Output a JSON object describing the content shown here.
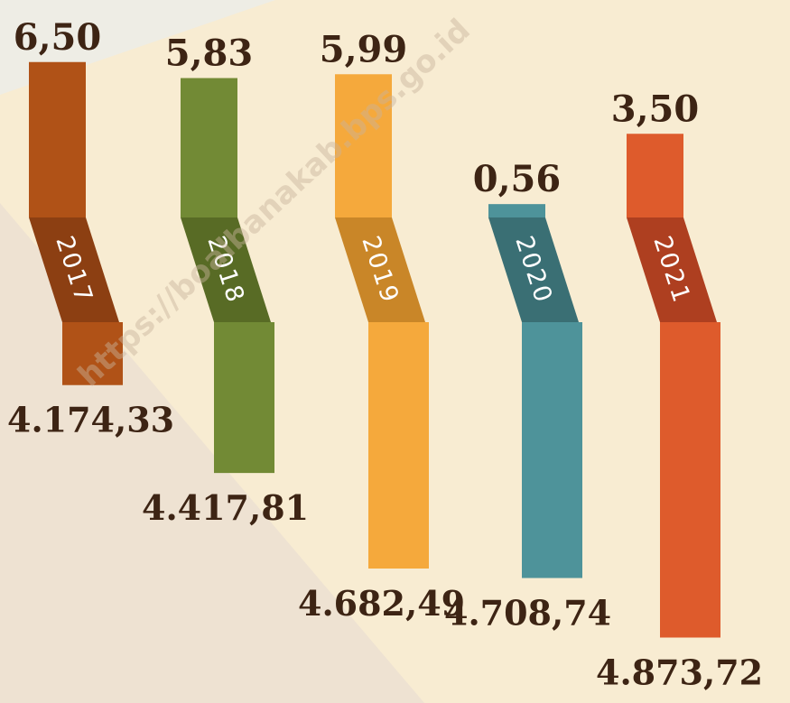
{
  "chart_data": {
    "type": "bar",
    "title": "",
    "categories": [
      "2017",
      "2018",
      "2019",
      "2020",
      "2021"
    ],
    "series": [
      {
        "values": [
          6.5,
          5.83,
          5.99,
          0.56,
          3.5
        ]
      },
      {
        "values": [
          4174.33,
          4417.81,
          4682.49,
          4708.74,
          4873.72
        ]
      }
    ],
    "top_labels": [
      "6,50",
      "5,83",
      "5,99",
      "0,56",
      "3,50"
    ],
    "bottom_labels": [
      "4.174,33",
      "4.417,81",
      "4.682,49",
      "4.708,74",
      "4.873,72"
    ],
    "colors": [
      "#b05217",
      "#728a35",
      "#f5a93c",
      "#4e939a",
      "#de5b2c"
    ],
    "band_colors": [
      "#8c3f12",
      "#586b25",
      "#c98628",
      "#3a6f74",
      "#ae3f20"
    ],
    "grid": false,
    "legend": "none"
  },
  "watermark": "https://boalbanakab.bps.go.id",
  "background": {
    "main": "#f8ecd2",
    "top_left": "#eeede5",
    "lower_left": "#eee2d2"
  }
}
